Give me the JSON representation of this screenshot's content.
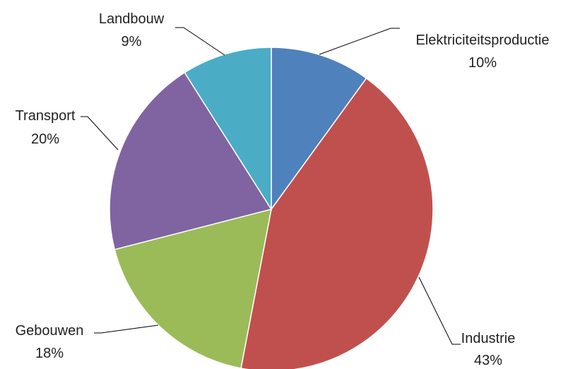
{
  "chart_data": {
    "type": "pie",
    "title": "",
    "slices": [
      {
        "label": "Elektriciteitsproductie",
        "value": 10,
        "value_label": "10%",
        "color": "#4F81BD"
      },
      {
        "label": "Industrie",
        "value": 43,
        "value_label": "43%",
        "color": "#C0504D"
      },
      {
        "label": "Gebouwen",
        "value": 18,
        "value_label": "18%",
        "color": "#9BBB59"
      },
      {
        "label": "Transport",
        "value": 20,
        "value_label": "20%",
        "color": "#8064A2"
      },
      {
        "label": "Landbouw",
        "value": 9,
        "value_label": "9%",
        "color": "#4BACC6"
      }
    ],
    "start_angle": "12 o'clock",
    "direction": "clockwise",
    "legend": "none",
    "labels": "outside with leader lines"
  }
}
